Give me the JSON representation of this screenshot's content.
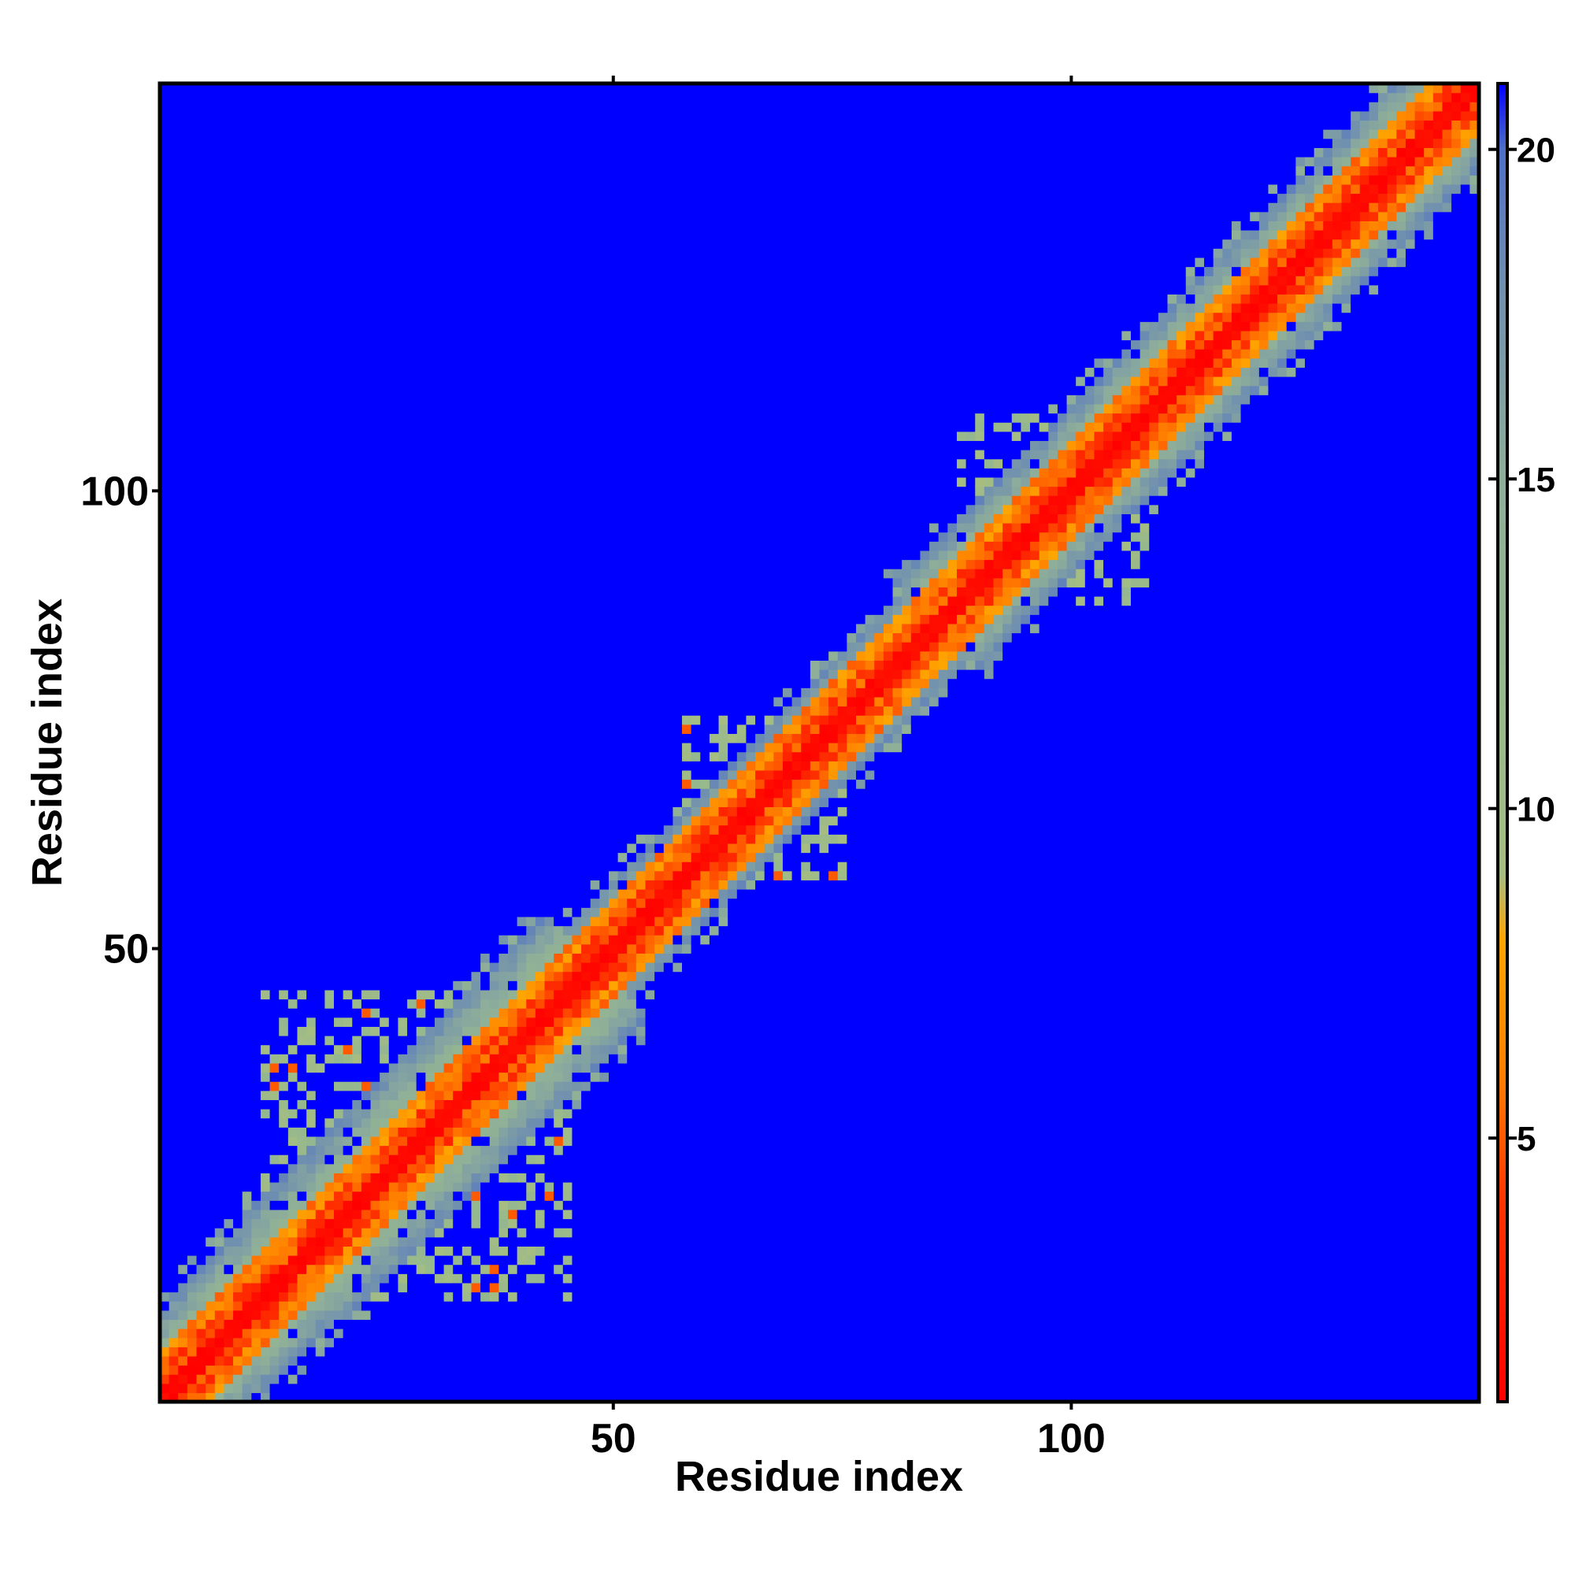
{
  "chart_data": {
    "type": "heatmap",
    "title": "",
    "xlabel": "Residue index",
    "ylabel": "Residue index",
    "n_residues": 144,
    "xlim": [
      1,
      144
    ],
    "ylim": [
      1,
      144
    ],
    "x_ticks": [
      50,
      100
    ],
    "y_ticks": [
      50,
      100
    ],
    "x_tick_labels": [
      "50",
      "100"
    ],
    "y_tick_labels": [
      "50",
      "100"
    ],
    "matrix_description": "pairwise residue distance map, symmetric, minimum on diagonal",
    "diagonal_value_min": 1,
    "far_value": 21,
    "band_segments": [
      {
        "from": 1,
        "to": 15,
        "halfwidth": 10
      },
      {
        "from": 15,
        "to": 48,
        "halfwidth": 11
      },
      {
        "from": 48,
        "to": 85,
        "halfwidth": 7
      },
      {
        "from": 85,
        "to": 144,
        "halfwidth": 9
      }
    ],
    "contact_clusters": [
      {
        "x_range": [
          12,
          44
        ],
        "y_range": [
          15,
          45
        ]
      },
      {
        "x_range": [
          60,
          75
        ],
        "y_range": [
          58,
          72
        ]
      },
      {
        "x_range": [
          92,
          108
        ],
        "y_range": [
          88,
          105
        ]
      }
    ],
    "colorbar": {
      "min": 1,
      "max": 21,
      "ticks": [
        5,
        10,
        15,
        20
      ],
      "tick_labels": [
        "5",
        "10",
        "15",
        "20"
      ],
      "colors": [
        {
          "value": 1,
          "color": "#ff0000"
        },
        {
          "value": 4,
          "color": "#ff3300"
        },
        {
          "value": 6,
          "color": "#ff8000"
        },
        {
          "value": 8,
          "color": "#ffa500"
        },
        {
          "value": 9,
          "color": "#a6bd82"
        },
        {
          "value": 12,
          "color": "#95b88e"
        },
        {
          "value": 15,
          "color": "#8fae99"
        },
        {
          "value": 18,
          "color": "#6f8fb0"
        },
        {
          "value": 20,
          "color": "#4f6fc8"
        },
        {
          "value": 21,
          "color": "#0000ff"
        }
      ]
    },
    "grid": false,
    "legend": "colorbar-right"
  }
}
